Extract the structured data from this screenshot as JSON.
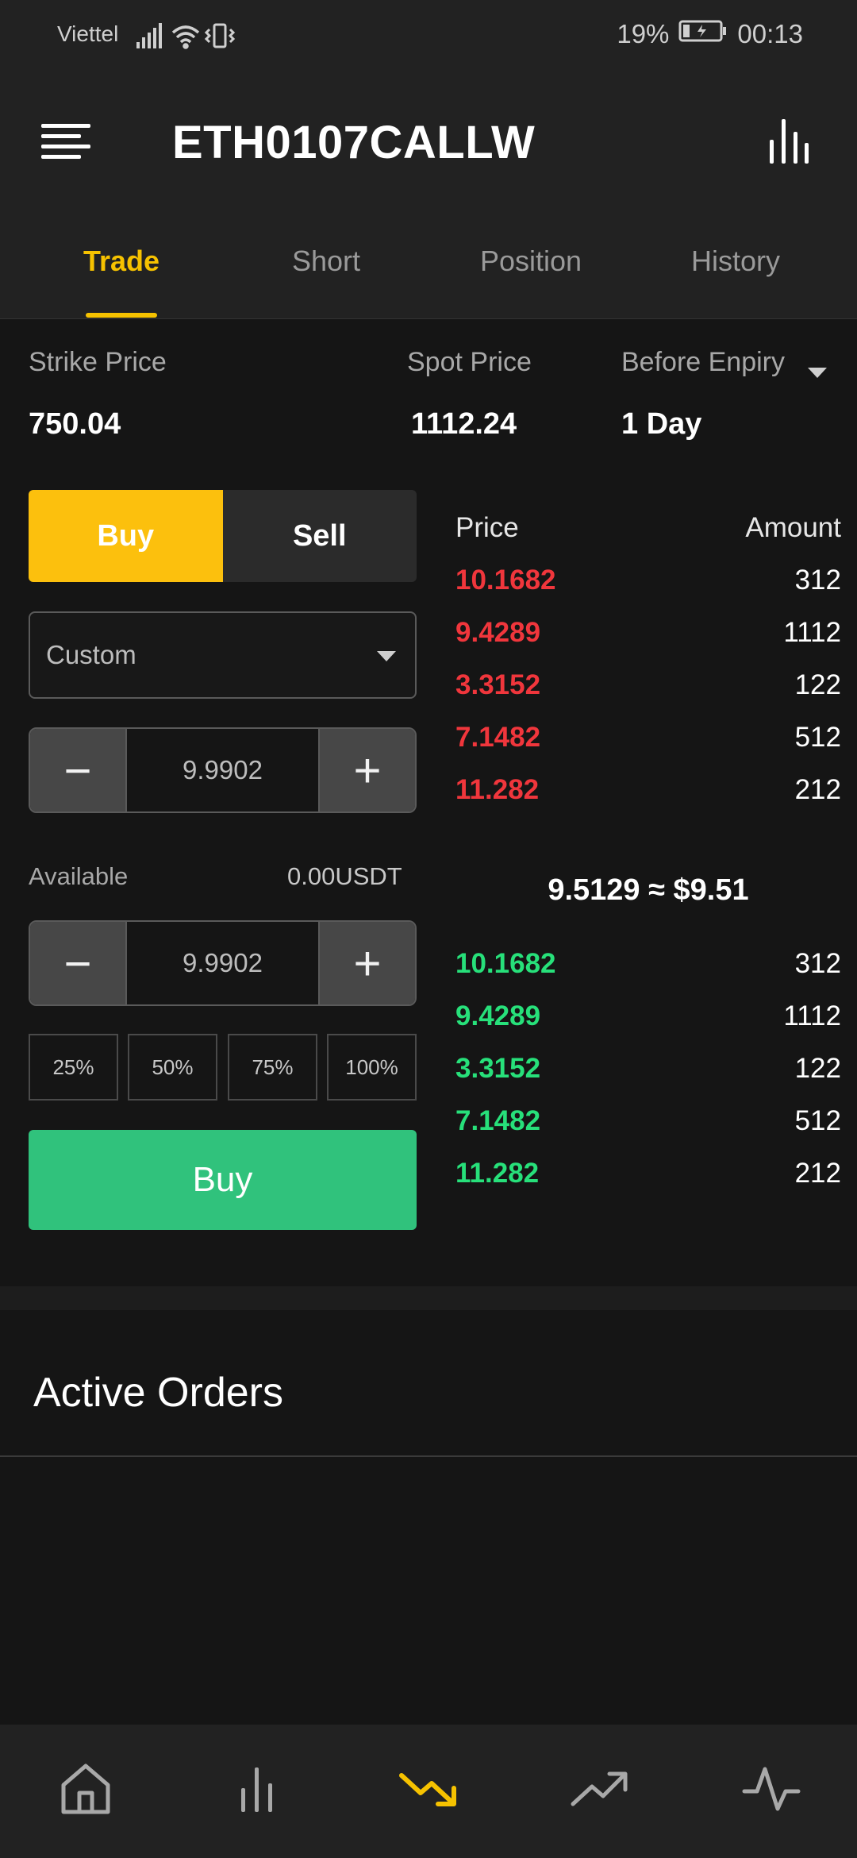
{
  "status_bar": {
    "carrier": "Viettel",
    "battery": "19%",
    "time": "00:13"
  },
  "header": {
    "title": "ETH0107CALLW",
    "menu_icon": "menu-icon",
    "chart_icon": "bar-chart-icon"
  },
  "tabs": [
    {
      "label": "Trade",
      "active": true
    },
    {
      "label": "Short",
      "active": false
    },
    {
      "label": "Position",
      "active": false
    },
    {
      "label": "History",
      "active": false
    }
  ],
  "info": {
    "strike_label": "Strike Price",
    "strike_value": "750.04",
    "spot_label": "Spot Price",
    "spot_value": "1112.24",
    "expiry_label": "Before Enpiry",
    "expiry_value": "1 Day"
  },
  "form": {
    "buy_label": "Buy",
    "sell_label": "Sell",
    "order_type": "Custom",
    "price_value": "9.9902",
    "available_label": "Available",
    "available_value": "0.00USDT",
    "amount_value": "9.9902",
    "minus": "−",
    "plus": "+",
    "percents": [
      "25%",
      "50%",
      "75%",
      "100%"
    ],
    "submit_label": "Buy"
  },
  "order_book": {
    "price_header": "Price",
    "amount_header": "Amount",
    "asks": [
      {
        "price": "10.1682",
        "amount": "312"
      },
      {
        "price": "9.4289",
        "amount": "1112"
      },
      {
        "price": "3.3152",
        "amount": "122"
      },
      {
        "price": "7.1482",
        "amount": "512"
      },
      {
        "price": "11.282",
        "amount": "212"
      }
    ],
    "mid_price": "9.5129 ≈ $9.51",
    "bids": [
      {
        "price": "10.1682",
        "amount": "312"
      },
      {
        "price": "9.4289",
        "amount": "1112"
      },
      {
        "price": "3.3152",
        "amount": "122"
      },
      {
        "price": "7.1482",
        "amount": "512"
      },
      {
        "price": "11.282",
        "amount": "212"
      }
    ]
  },
  "active_orders": {
    "title": "Active Orders"
  },
  "bottom_nav": [
    {
      "icon": "home-icon",
      "active": false
    },
    {
      "icon": "bar-chart-icon",
      "active": false
    },
    {
      "icon": "trend-down-icon",
      "active": true
    },
    {
      "icon": "trend-up-icon",
      "active": false
    },
    {
      "icon": "activity-icon",
      "active": false
    }
  ],
  "colors": {
    "accent": "#f6c200",
    "buy": "#30c27c",
    "ask": "#f0363c",
    "bid": "#27e07a",
    "background": "#151515"
  }
}
